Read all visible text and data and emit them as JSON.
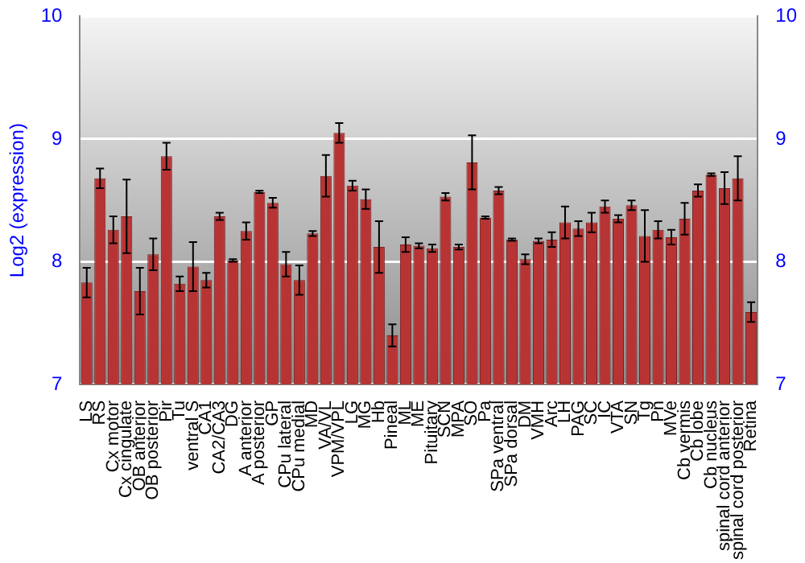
{
  "chart_data": {
    "type": "bar",
    "ylabel": "Log2 (expression)",
    "categories": [
      "LS",
      "RS",
      "Cx motor",
      "Cx cingulate",
      "OB anterior",
      "OB posterior",
      "Pir",
      "Tu",
      "ventral S",
      "CA1",
      "CA2/CA3",
      "DG",
      "A anterior",
      "A posterior",
      "GP",
      "CPu lateral",
      "CPu medial",
      "MD",
      "VA/VL",
      "VPM/VPL",
      "LG",
      "MG",
      "Hb",
      "Pineal",
      "ML",
      "ME",
      "Pituitary",
      "SCN",
      "MPA",
      "SO",
      "Pa",
      "SPa ventral",
      "SPa dorsal",
      "DM",
      "VMH",
      "Arc",
      "LH",
      "PAG",
      "SC",
      "IC",
      "VTA",
      "SN",
      "Tg",
      "Pn",
      "MVe",
      "Cb vermis",
      "Cb lobe",
      "Cb nucleus",
      "spinal cord anterior",
      "spinal cord posterior",
      "Retina"
    ],
    "values": [
      7.83,
      8.68,
      8.26,
      8.37,
      7.76,
      8.06,
      8.86,
      7.82,
      7.96,
      7.85,
      8.37,
      8.01,
      8.25,
      8.57,
      8.48,
      7.98,
      7.85,
      8.23,
      8.7,
      9.05,
      8.62,
      8.51,
      8.12,
      7.4,
      8.14,
      8.13,
      8.11,
      8.53,
      8.12,
      8.81,
      8.36,
      8.58,
      8.18,
      8.02,
      8.17,
      8.18,
      8.32,
      8.27,
      8.32,
      8.45,
      8.35,
      8.46,
      8.21,
      8.26,
      8.2,
      8.35,
      8.58,
      8.71,
      8.6,
      8.68,
      7.59
    ],
    "errors": [
      0.12,
      0.08,
      0.11,
      0.3,
      0.19,
      0.13,
      0.11,
      0.06,
      0.2,
      0.06,
      0.03,
      0.01,
      0.07,
      0.01,
      0.04,
      0.1,
      0.12,
      0.02,
      0.17,
      0.08,
      0.04,
      0.08,
      0.21,
      0.09,
      0.06,
      0.02,
      0.03,
      0.03,
      0.02,
      0.22,
      0.01,
      0.03,
      0.01,
      0.04,
      0.02,
      0.06,
      0.13,
      0.06,
      0.08,
      0.05,
      0.03,
      0.04,
      0.21,
      0.07,
      0.06,
      0.13,
      0.05,
      0.01,
      0.13,
      0.18,
      0.08
    ],
    "color": "#b83434",
    "ylim": [
      7,
      10
    ],
    "yticks": [
      7,
      8,
      9,
      10
    ],
    "y2lim": [
      7,
      10
    ],
    "y2ticks": [
      7,
      8,
      9,
      10
    ],
    "grid": "y",
    "legend": false
  }
}
